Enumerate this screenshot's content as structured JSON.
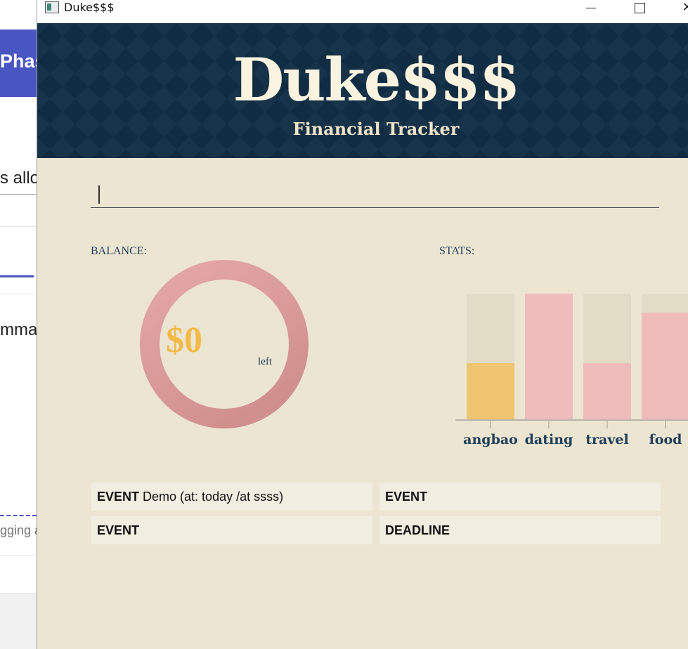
{
  "background_app": {
    "header_text": "Phas",
    "text_1": "s allo",
    "text_2": "mma",
    "text_3": "gging a"
  },
  "window": {
    "title": "Duke$$$",
    "minimize_glyph": "–",
    "maximize_glyph": "□",
    "close_glyph": "✕"
  },
  "header": {
    "title": "Duke$$$",
    "subtitle": "Financial Tracker"
  },
  "command": {
    "value": "",
    "placeholder": ""
  },
  "balance": {
    "label": "BALANCE:",
    "amount": "$0",
    "suffix": "left"
  },
  "stats": {
    "label": "STATS:"
  },
  "chart_data": {
    "type": "bar",
    "title": "",
    "categories": [
      "angbao",
      "dating",
      "travel",
      "food"
    ],
    "values": [
      0.45,
      1.0,
      0.45,
      0.85
    ],
    "ylim": [
      0,
      1
    ],
    "xlabel": "",
    "ylabel": "",
    "grid": false,
    "colors": [
      "#efc571",
      "#efbcbc",
      "#efbcbc",
      "#efbcbc"
    ],
    "track_color": "#e2dbc5"
  },
  "events": [
    {
      "type": "EVENT",
      "description": "Demo (at: today /at ssss)"
    },
    {
      "type": "EVENT",
      "description": ""
    },
    {
      "type": "EVENT",
      "description": ""
    },
    {
      "type": "DEADLINE",
      "description": ""
    }
  ],
  "colors": {
    "banner": "#0f2c43",
    "background": "#ece5d2",
    "accent_gold": "#f2ba49",
    "donut": "#d69593"
  }
}
